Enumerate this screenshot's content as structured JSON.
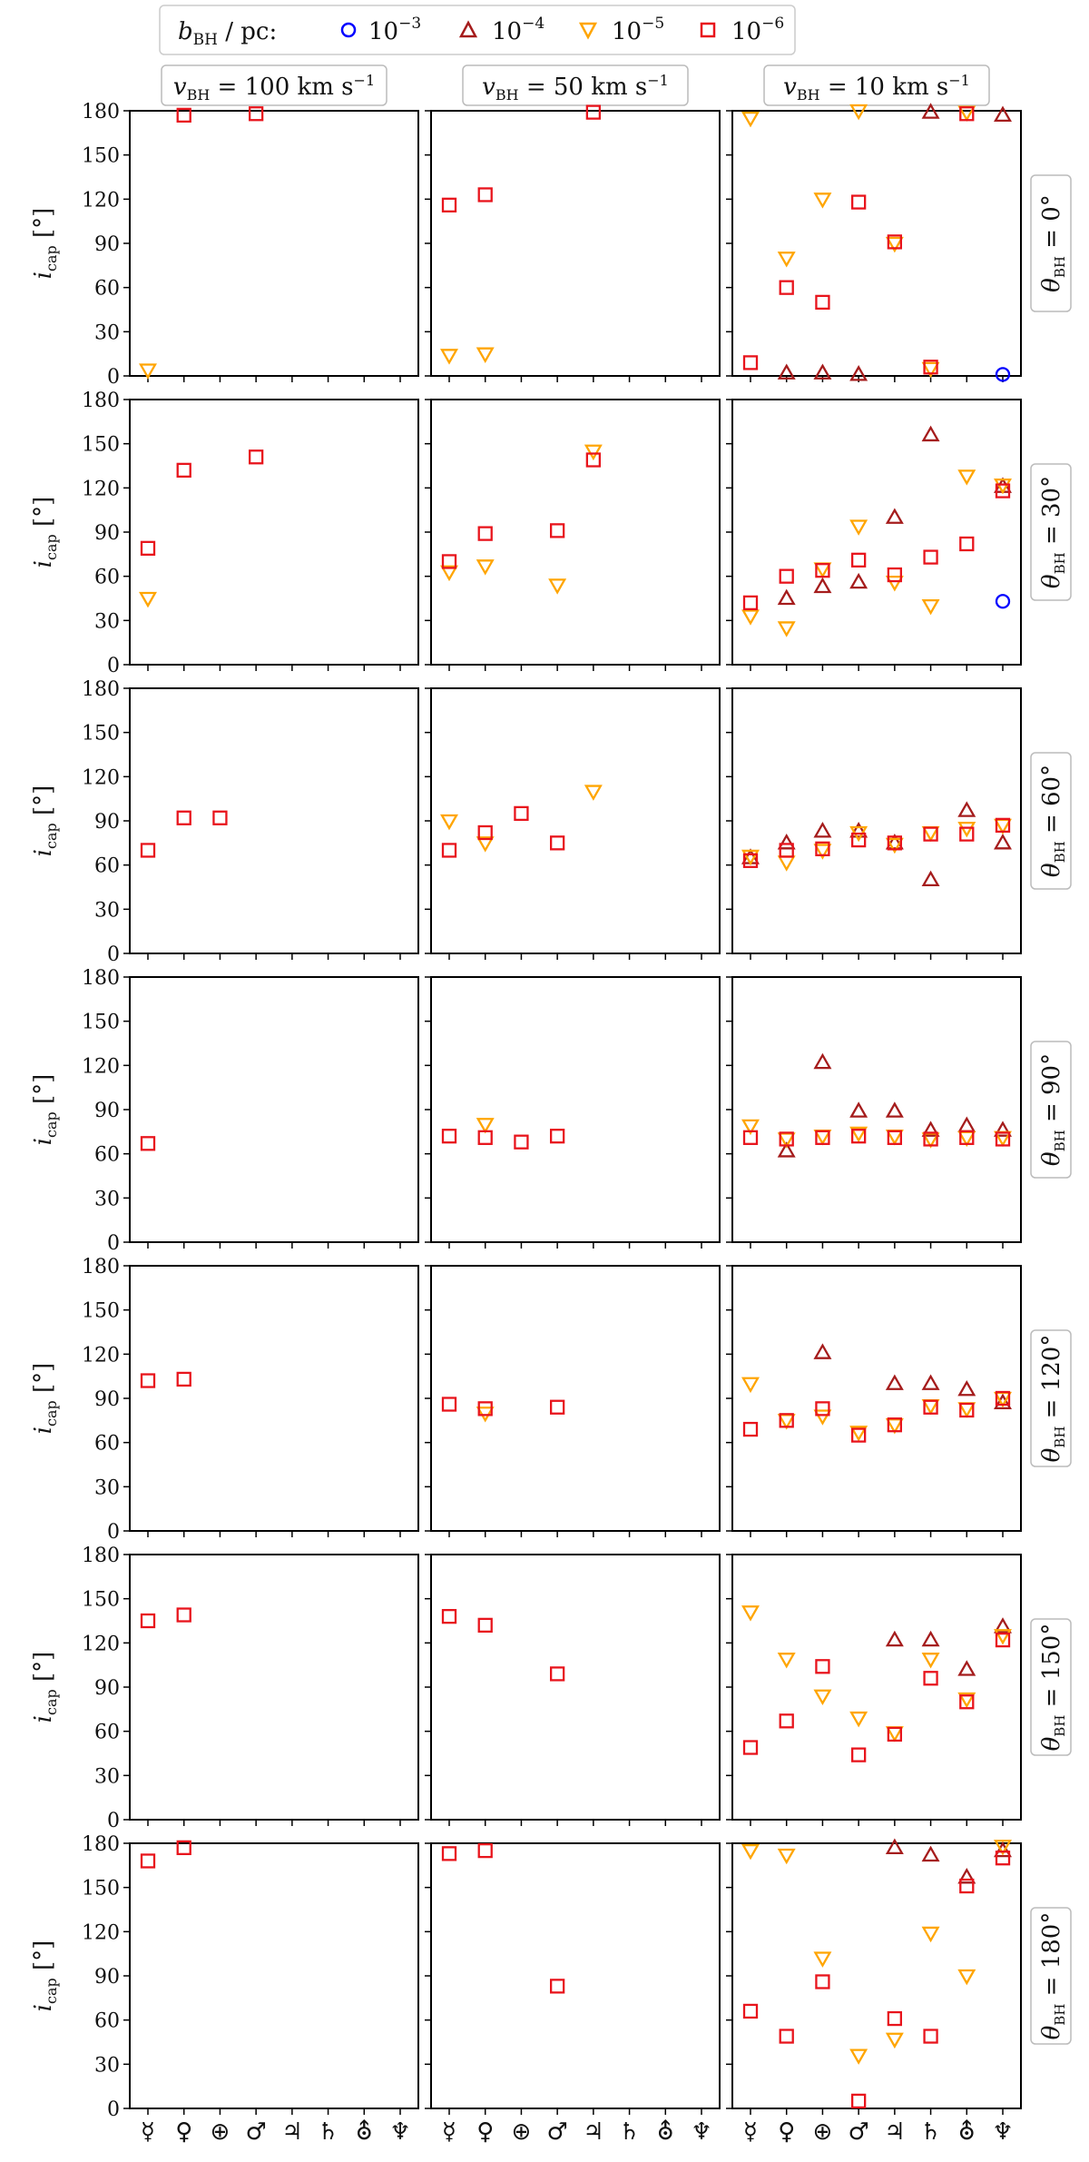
{
  "chart_data": {
    "type": "scatter",
    "legend": {
      "title": "b_BH / pc:",
      "entries": [
        {
          "key": "b3",
          "label": "10^-3",
          "marker": "circle",
          "color": "#0000ff"
        },
        {
          "key": "b4",
          "label": "10^-4",
          "marker": "triangle-up",
          "color": "#a51c1c"
        },
        {
          "key": "b5",
          "label": "10^-5",
          "marker": "triangle-down",
          "color": "#ffa500"
        },
        {
          "key": "b6",
          "label": "10^-6",
          "marker": "square",
          "color": "#e8141c"
        }
      ]
    },
    "columns": [
      "v_BH = 100 km s^-1",
      "v_BH = 50 km s^-1",
      "v_BH = 10 km s^-1"
    ],
    "rows": [
      "θ_BH = 0°",
      "θ_BH = 30°",
      "θ_BH = 60°",
      "θ_BH = 90°",
      "θ_BH = 120°",
      "θ_BH = 150°",
      "θ_BH = 180°"
    ],
    "ylabel": "i_cap [°]",
    "ylim": [
      0,
      180
    ],
    "yticks": [
      "0",
      "30",
      "60",
      "90",
      "120",
      "150",
      "180"
    ],
    "x_categories": [
      "☿",
      "♀",
      "⊕",
      "♂",
      "♃",
      "♄",
      "⛢",
      "♆"
    ],
    "panels": [
      [
        {
          "b6": [
            [
              1,
              177
            ],
            [
              3,
              178
            ]
          ],
          "b5": [
            [
              0,
              4
            ]
          ]
        },
        {
          "b6": [
            [
              0,
              116
            ],
            [
              1,
              123
            ],
            [
              4,
              179
            ]
          ],
          "b5": [
            [
              0,
              14
            ],
            [
              1,
              15
            ]
          ]
        },
        {
          "b3": [
            [
              7,
              1
            ]
          ],
          "b4": [
            [
              1,
              2
            ],
            [
              2,
              2
            ],
            [
              3,
              1
            ],
            [
              5,
              179
            ],
            [
              7,
              177
            ]
          ],
          "b5": [
            [
              0,
              175
            ],
            [
              1,
              80
            ],
            [
              2,
              120
            ],
            [
              3,
              180
            ],
            [
              4,
              90
            ],
            [
              5,
              5
            ],
            [
              6,
              179
            ]
          ],
          "b6": [
            [
              0,
              9
            ],
            [
              1,
              60
            ],
            [
              2,
              50
            ],
            [
              3,
              118
            ],
            [
              4,
              91
            ],
            [
              5,
              6
            ],
            [
              6,
              178
            ]
          ]
        }
      ],
      [
        {
          "b6": [
            [
              0,
              79
            ],
            [
              1,
              132
            ],
            [
              3,
              141
            ]
          ],
          "b5": [
            [
              0,
              45
            ]
          ]
        },
        {
          "b6": [
            [
              0,
              70
            ],
            [
              1,
              89
            ],
            [
              3,
              91
            ],
            [
              4,
              139
            ]
          ],
          "b5": [
            [
              0,
              63
            ],
            [
              1,
              67
            ],
            [
              3,
              54
            ],
            [
              4,
              145
            ]
          ]
        },
        {
          "b3": [
            [
              7,
              43
            ]
          ],
          "b4": [
            [
              1,
              45
            ],
            [
              2,
              53
            ],
            [
              3,
              56
            ],
            [
              4,
              100
            ],
            [
              5,
              156
            ],
            [
              7,
              121
            ]
          ],
          "b5": [
            [
              0,
              33
            ],
            [
              1,
              25
            ],
            [
              2,
              65
            ],
            [
              3,
              94
            ],
            [
              4,
              56
            ],
            [
              5,
              40
            ],
            [
              6,
              128
            ],
            [
              7,
              122
            ]
          ],
          "b6": [
            [
              0,
              42
            ],
            [
              1,
              60
            ],
            [
              2,
              64
            ],
            [
              3,
              71
            ],
            [
              4,
              61
            ],
            [
              5,
              73
            ],
            [
              6,
              82
            ],
            [
              7,
              118
            ]
          ]
        }
      ],
      [
        {
          "b6": [
            [
              0,
              70
            ],
            [
              1,
              92
            ],
            [
              2,
              92
            ]
          ]
        },
        {
          "b6": [
            [
              0,
              70
            ],
            [
              1,
              82
            ],
            [
              2,
              95
            ],
            [
              3,
              75
            ]
          ],
          "b5": [
            [
              0,
              90
            ],
            [
              1,
              75
            ],
            [
              4,
              110
            ]
          ]
        },
        {
          "b4": [
            [
              0,
              65
            ],
            [
              1,
              75
            ],
            [
              2,
              83
            ],
            [
              3,
              83
            ],
            [
              4,
              75
            ],
            [
              5,
              50
            ],
            [
              6,
              97
            ],
            [
              7,
              75
            ]
          ],
          "b5": [
            [
              0,
              66
            ],
            [
              1,
              62
            ],
            [
              2,
              70
            ],
            [
              3,
              82
            ],
            [
              4,
              74
            ],
            [
              5,
              82
            ],
            [
              6,
              85
            ],
            [
              7,
              87
            ]
          ],
          "b6": [
            [
              0,
              63
            ],
            [
              1,
              70
            ],
            [
              2,
              71
            ],
            [
              3,
              77
            ],
            [
              4,
              75
            ],
            [
              5,
              81
            ],
            [
              6,
              81
            ],
            [
              7,
              87
            ]
          ]
        }
      ],
      [
        {
          "b6": [
            [
              0,
              67
            ]
          ]
        },
        {
          "b6": [
            [
              0,
              72
            ],
            [
              1,
              71
            ],
            [
              2,
              68
            ],
            [
              3,
              72
            ]
          ],
          "b5": [
            [
              1,
              80
            ]
          ]
        },
        {
          "b4": [
            [
              1,
              62
            ],
            [
              2,
              122
            ],
            [
              3,
              89
            ],
            [
              4,
              89
            ],
            [
              5,
              76
            ],
            [
              6,
              79
            ],
            [
              7,
              76
            ]
          ],
          "b5": [
            [
              0,
              79
            ],
            [
              1,
              70
            ],
            [
              2,
              72
            ],
            [
              3,
              74
            ],
            [
              4,
              72
            ],
            [
              5,
              70
            ],
            [
              6,
              71
            ],
            [
              7,
              71
            ]
          ],
          "b6": [
            [
              0,
              71
            ],
            [
              1,
              70
            ],
            [
              2,
              71
            ],
            [
              3,
              72
            ],
            [
              4,
              71
            ],
            [
              5,
              70
            ],
            [
              6,
              71
            ],
            [
              7,
              70
            ]
          ]
        }
      ],
      [
        {
          "b6": [
            [
              0,
              102
            ],
            [
              1,
              103
            ]
          ]
        },
        {
          "b6": [
            [
              0,
              86
            ],
            [
              1,
              83
            ],
            [
              3,
              84
            ]
          ],
          "b5": [
            [
              1,
              80
            ]
          ]
        },
        {
          "b4": [
            [
              2,
              121
            ],
            [
              4,
              100
            ],
            [
              5,
              100
            ],
            [
              6,
              96
            ],
            [
              7,
              87
            ]
          ],
          "b5": [
            [
              0,
              100
            ],
            [
              1,
              75
            ],
            [
              2,
              78
            ],
            [
              3,
              67
            ],
            [
              4,
              72
            ],
            [
              5,
              85
            ],
            [
              6,
              83
            ],
            [
              7,
              90
            ]
          ],
          "b6": [
            [
              0,
              69
            ],
            [
              1,
              75
            ],
            [
              2,
              83
            ],
            [
              3,
              65
            ],
            [
              4,
              72
            ],
            [
              5,
              84
            ],
            [
              6,
              82
            ],
            [
              7,
              90
            ]
          ]
        }
      ],
      [
        {
          "b6": [
            [
              0,
              135
            ],
            [
              1,
              139
            ]
          ]
        },
        {
          "b6": [
            [
              0,
              138
            ],
            [
              1,
              132
            ],
            [
              3,
              99
            ]
          ]
        },
        {
          "b4": [
            [
              4,
              122
            ],
            [
              5,
              122
            ],
            [
              6,
              102
            ],
            [
              7,
              131
            ]
          ],
          "b5": [
            [
              0,
              141
            ],
            [
              1,
              109
            ],
            [
              2,
              84
            ],
            [
              3,
              69
            ],
            [
              4,
              59
            ],
            [
              5,
              109
            ],
            [
              6,
              82
            ],
            [
              7,
              125
            ]
          ],
          "b6": [
            [
              0,
              49
            ],
            [
              1,
              67
            ],
            [
              2,
              104
            ],
            [
              3,
              44
            ],
            [
              4,
              58
            ],
            [
              5,
              96
            ],
            [
              6,
              80
            ],
            [
              7,
              122
            ]
          ]
        }
      ],
      [
        {
          "b6": [
            [
              0,
              168
            ],
            [
              1,
              177
            ]
          ]
        },
        {
          "b6": [
            [
              0,
              173
            ],
            [
              1,
              175
            ],
            [
              3,
              83
            ]
          ]
        },
        {
          "b4": [
            [
              4,
              177
            ],
            [
              5,
              172
            ],
            [
              6,
              157
            ],
            [
              7,
              175
            ]
          ],
          "b5": [
            [
              0,
              175
            ],
            [
              1,
              172
            ],
            [
              2,
              102
            ],
            [
              3,
              36
            ],
            [
              4,
              47
            ],
            [
              5,
              119
            ],
            [
              6,
              90
            ],
            [
              7,
              178
            ]
          ],
          "b6": [
            [
              0,
              66
            ],
            [
              1,
              49
            ],
            [
              2,
              86
            ],
            [
              3,
              5
            ],
            [
              4,
              61
            ],
            [
              5,
              49
            ],
            [
              6,
              151
            ],
            [
              7,
              170
            ]
          ]
        }
      ]
    ]
  }
}
